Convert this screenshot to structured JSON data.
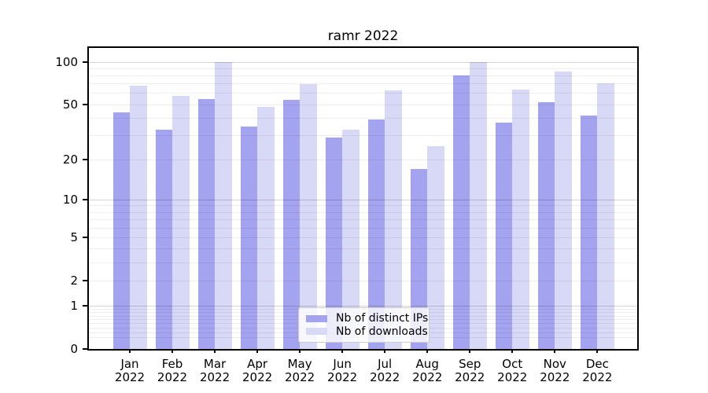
{
  "title": "ramr 2022",
  "chart_data": {
    "type": "bar",
    "title": "ramr 2022",
    "scale": "log1p",
    "categories": [
      "Jan",
      "Feb",
      "Mar",
      "Apr",
      "May",
      "Jun",
      "Jul",
      "Aug",
      "Sep",
      "Oct",
      "Nov",
      "Dec"
    ],
    "xlabel_year": "2022",
    "series": [
      {
        "name": "Nb of distinct IPs",
        "color": "#a3a3f0",
        "values": [
          44,
          33,
          55,
          35,
          54,
          29,
          39,
          17,
          81,
          37,
          52,
          42
        ]
      },
      {
        "name": "Nb of downloads",
        "color": "#d8d8f7",
        "values": [
          68,
          58,
          100,
          48,
          70,
          33,
          63,
          25,
          100,
          64,
          86,
          71
        ]
      }
    ],
    "yticks": [
      0,
      1,
      2,
      5,
      10,
      20,
      50,
      100
    ],
    "ylim": [
      0,
      125
    ],
    "grid": "horizontal",
    "legend_position": "bottom-center",
    "xlabel": "",
    "ylabel": ""
  },
  "colors": {
    "distinct_ips": "#a3a3f0",
    "downloads": "#d8d8f7",
    "major_grid": "#d4d4d4",
    "minor_grid": "#ededed",
    "frame": "#000000"
  }
}
